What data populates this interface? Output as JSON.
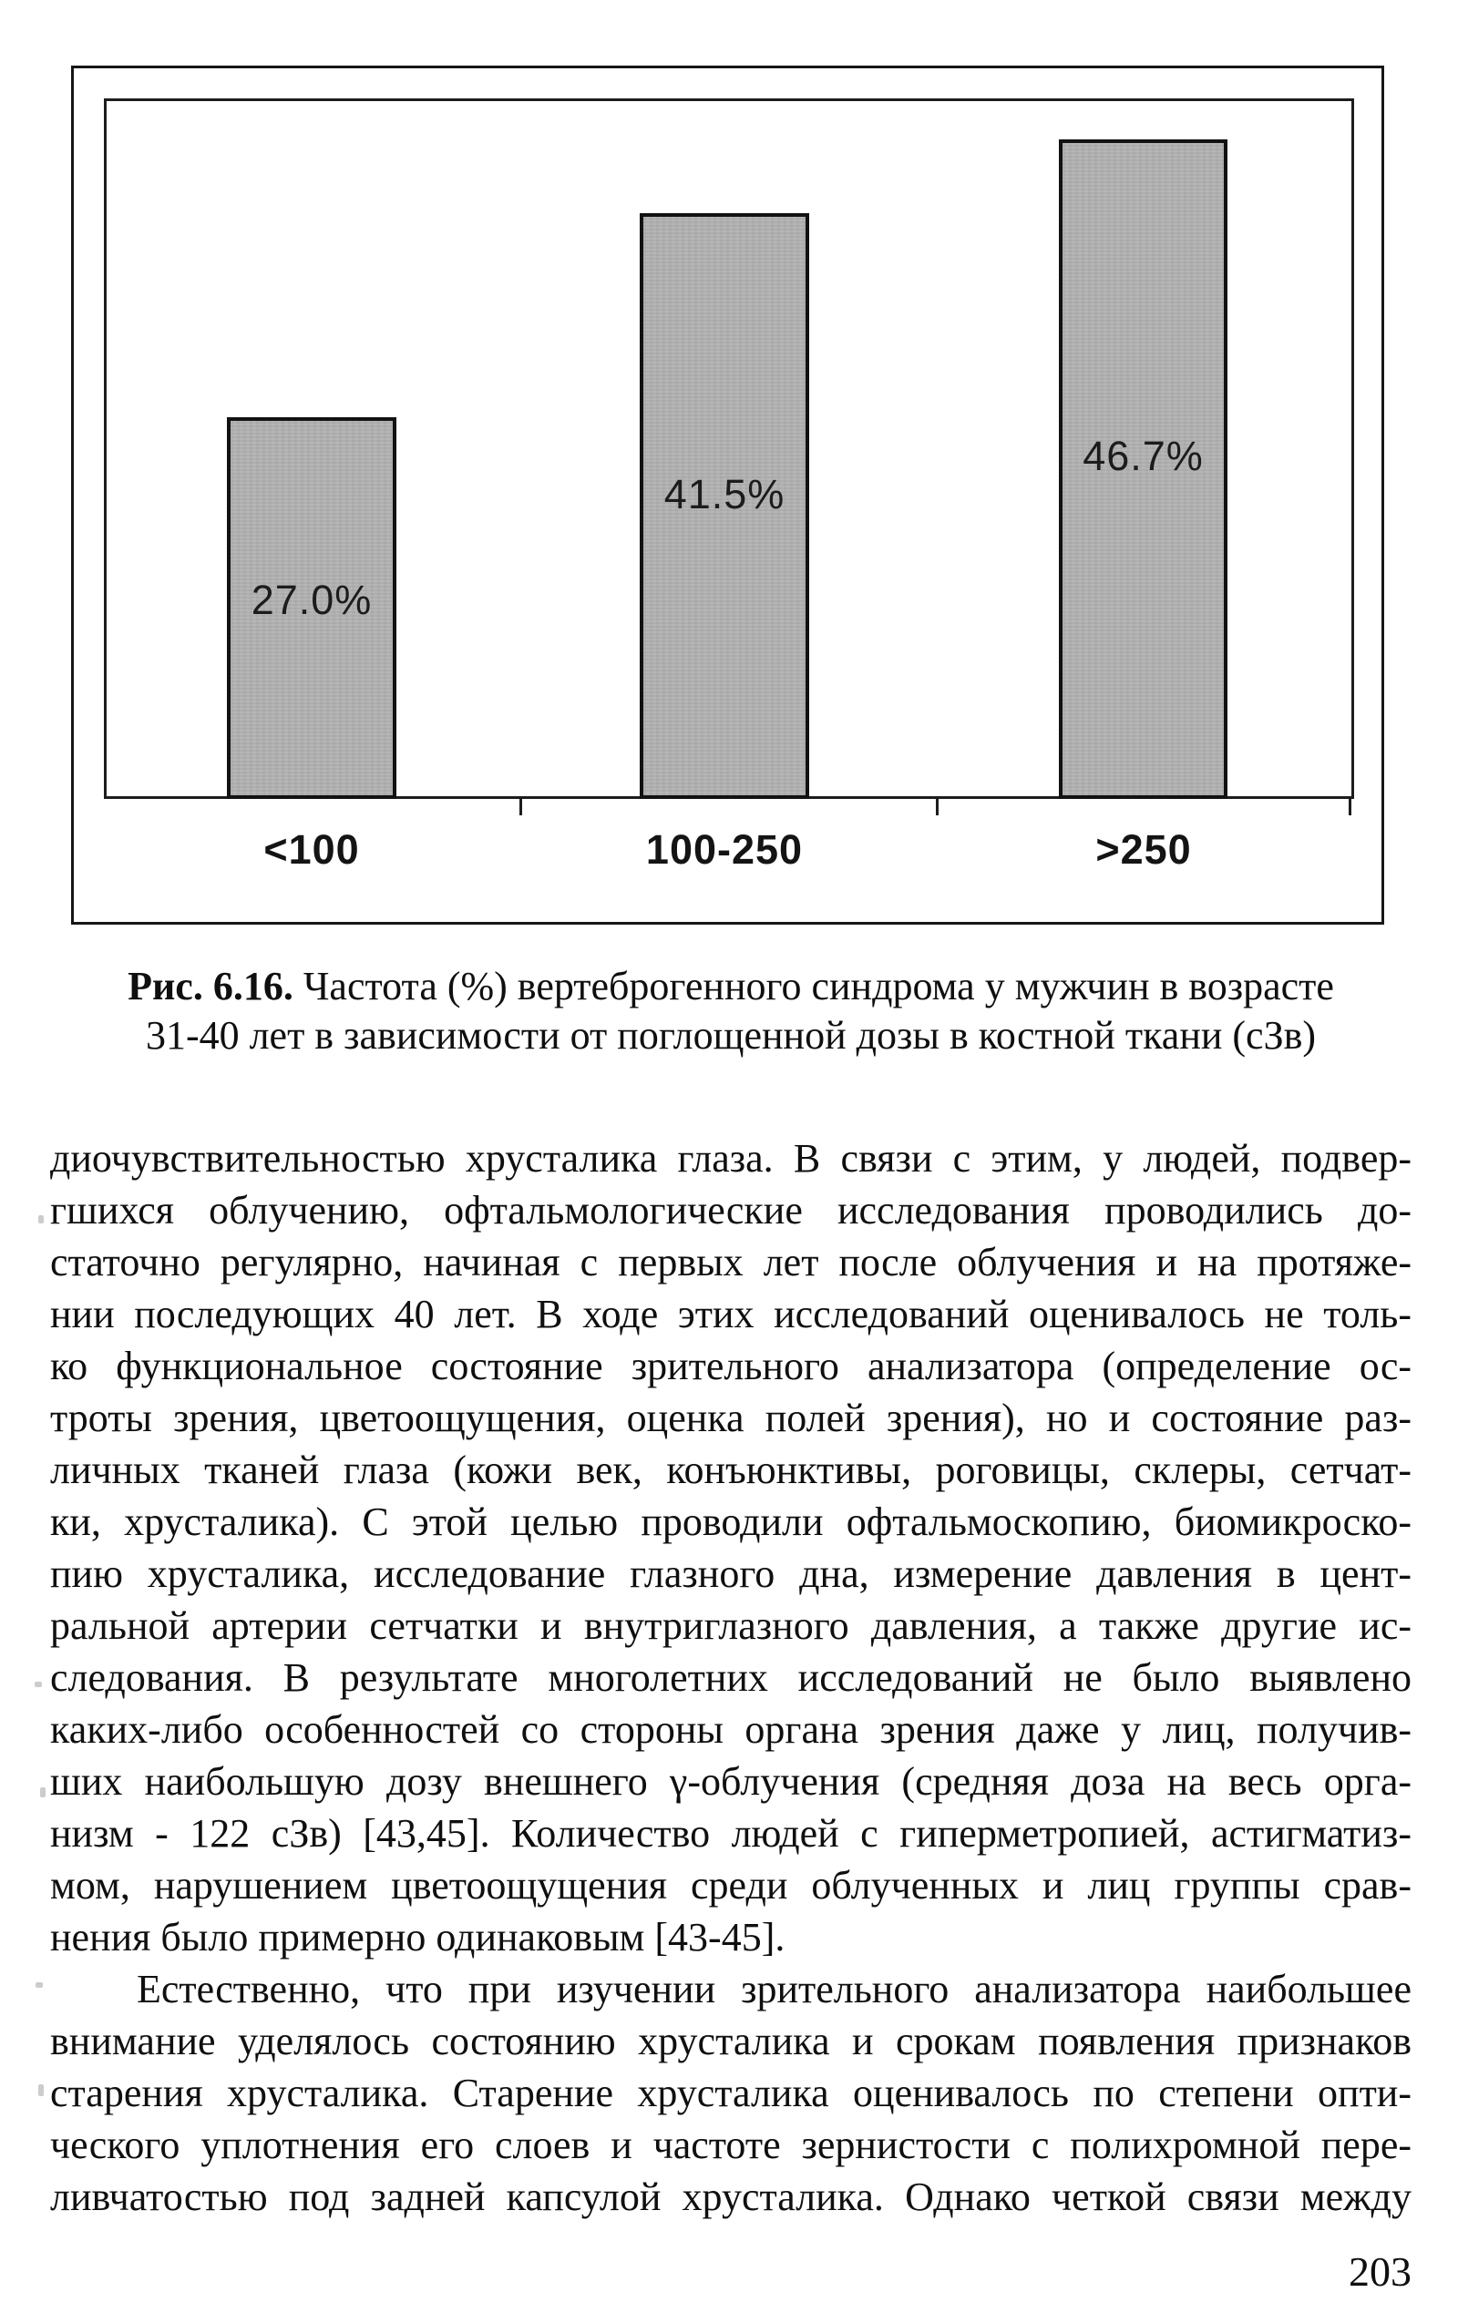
{
  "chart_data": {
    "type": "bar",
    "categories": [
      "<100",
      "100-250",
      ">250"
    ],
    "values": [
      27.0,
      41.5,
      46.7
    ],
    "bar_labels": [
      "27.0%",
      "41.5%",
      "46.7%"
    ],
    "title": "",
    "xlabel": "",
    "ylabel": "",
    "ylim": [
      0,
      50
    ],
    "grid": false,
    "legend_position": "none",
    "bar_color": "#b2b2b2",
    "bar_border_color": "#121212"
  },
  "caption": {
    "prefix": "Рис. 6.16.",
    "line1_rest": " Частота (%) вертеброгенного синдрома у мужчин в возрасте",
    "line2": "31-40 лет в зависимости от поглощенной дозы в костной ткани (сЗв)"
  },
  "body": {
    "lines": [
      "диочувствительностью хрусталика глаза. В связи с этим, у людей, подвер-",
      "гшихся облучению, офтальмологические исследования проводились до-",
      "статочно регулярно, начиная с первых лет после облучения и на протяже-",
      "нии последующих 40 лет. В ходе этих исследований оценивалось не толь-",
      "ко функциональное состояние зрительного анализатора (определение ос-",
      "троты зрения, цветоощущения, оценка полей зрения), но и состояние раз-",
      "личных тканей глаза (кожи век, конъюнктивы, роговицы, склеры, сетчат-",
      "ки, хрусталика). С этой целью проводили офтальмоскопию, биомикроско-",
      "пию хрусталика, исследование глазного дна, измерение давления в цент-",
      "ральной артерии сетчатки и внутриглазного давления, а также другие ис-",
      "следования. В результате многолетних исследований не было выявлено",
      "каких-либо особенностей со стороны органа зрения даже у лиц, получив-",
      "ших наибольшую дозу внешнего γ-облучения (средняя доза на весь орга-",
      "низм - 122 сЗв) [43,45]. Количество людей с гиперметропией, астигматиз-",
      "мом, нарушением цветоощущения среди облученных и лиц группы срав-",
      "нения было примерно одинаковым [43-45].",
      "Естественно, что при изучении зрительного анализатора наибольшее",
      "внимание уделялось состоянию хрусталика и срокам появления признаков",
      "старения хрусталика. Старение хрусталика оценивалось по степени опти-",
      "ческого уплотнения его слоев и частоте зернистости с полихромной пере-",
      "ливчатостью под задней капсулой хрусталика. Однако четкой связи между"
    ]
  },
  "page_number": "203"
}
